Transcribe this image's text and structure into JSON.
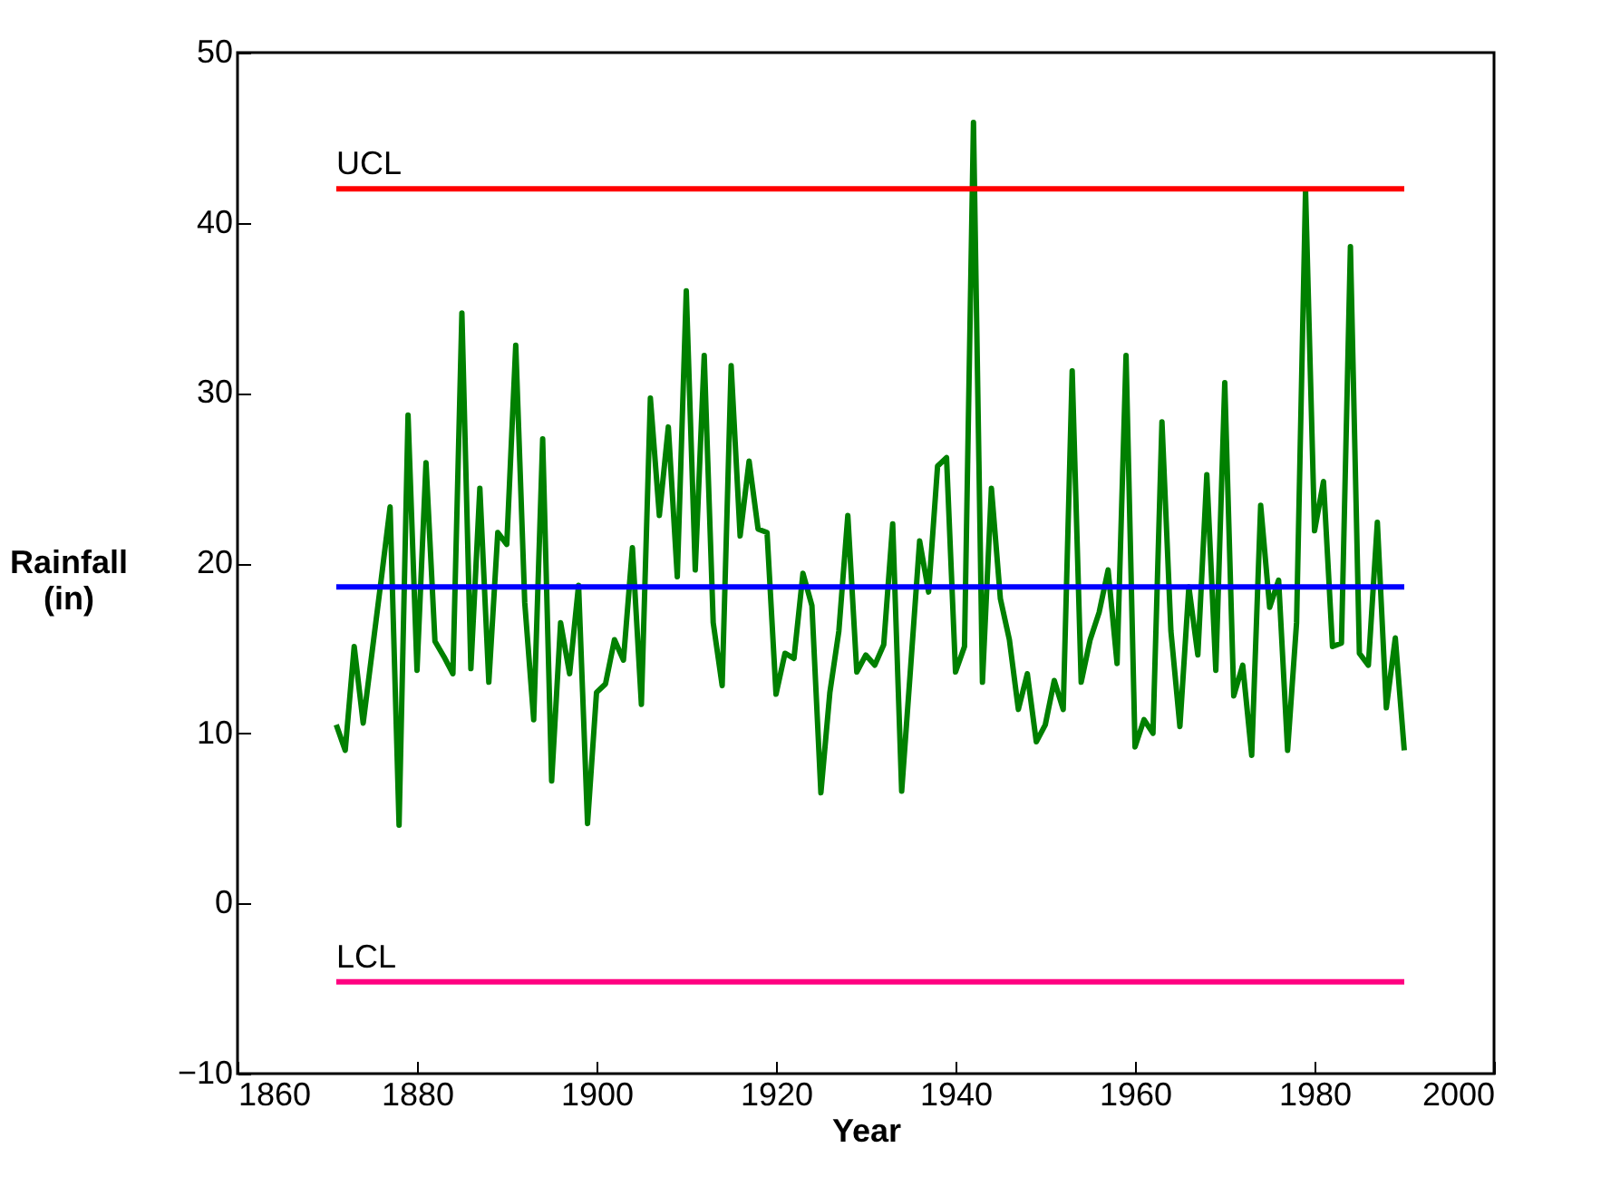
{
  "chart_data": {
    "type": "line",
    "xlabel": "Year",
    "ylabel": "Rainfall (in)",
    "x": [
      1871,
      1872,
      1873,
      1874,
      1875,
      1876,
      1877,
      1878,
      1879,
      1880,
      1881,
      1882,
      1883,
      1884,
      1885,
      1886,
      1887,
      1888,
      1889,
      1890,
      1891,
      1892,
      1893,
      1894,
      1895,
      1896,
      1897,
      1898,
      1899,
      1900,
      1901,
      1902,
      1903,
      1904,
      1905,
      1906,
      1907,
      1908,
      1909,
      1910,
      1911,
      1912,
      1913,
      1914,
      1915,
      1916,
      1917,
      1918,
      1919,
      1920,
      1921,
      1922,
      1923,
      1924,
      1925,
      1926,
      1927,
      1928,
      1929,
      1930,
      1931,
      1932,
      1933,
      1934,
      1935,
      1936,
      1937,
      1938,
      1939,
      1940,
      1941,
      1942,
      1943,
      1944,
      1945,
      1946,
      1947,
      1948,
      1949,
      1950,
      1951,
      1952,
      1953,
      1954,
      1955,
      1956,
      1957,
      1958,
      1959,
      1960,
      1961,
      1962,
      1963,
      1964,
      1965,
      1966,
      1967,
      1968,
      1969,
      1970,
      1971,
      1972,
      1973,
      1974,
      1975,
      1976,
      1977,
      1978,
      1979,
      1980,
      1981,
      1982,
      1983,
      1984,
      1985,
      1986,
      1987,
      1988,
      1989,
      1990
    ],
    "series": [
      {
        "color": "#008000",
        "values": [
          10.5,
          9.0,
          15.1,
          10.6,
          14.8,
          19.0,
          23.3,
          4.6,
          28.7,
          13.7,
          25.9,
          15.4,
          14.5,
          13.5,
          34.7,
          13.8,
          24.4,
          13.0,
          21.8,
          21.1,
          32.8,
          17.7,
          10.8,
          27.3,
          7.2,
          16.5,
          13.5,
          18.7,
          4.7,
          12.4,
          12.9,
          15.5,
          14.3,
          20.9,
          11.7,
          29.7,
          22.8,
          28.0,
          19.2,
          36.0,
          19.6,
          32.2,
          16.5,
          12.8,
          31.6,
          21.6,
          26.0,
          22.0,
          21.8,
          12.3,
          14.7,
          14.4,
          19.4,
          17.5,
          6.5,
          12.4,
          16.0,
          22.8,
          13.6,
          14.6,
          14.0,
          15.2,
          22.3,
          6.6,
          13.9,
          21.3,
          18.3,
          25.7,
          26.2,
          13.6,
          15.1,
          45.9,
          13.0,
          24.4,
          17.9,
          15.5,
          11.4,
          13.5,
          9.5,
          10.5,
          13.1,
          11.4,
          31.3,
          13.0,
          15.5,
          17.1,
          19.6,
          14.1,
          32.2,
          9.2,
          10.8,
          10.0,
          28.3,
          16.0,
          10.4,
          18.6,
          14.6,
          25.2,
          13.7,
          30.6,
          12.2,
          14.0,
          8.7,
          23.4,
          17.4,
          19.0,
          9.0,
          16.5,
          41.9,
          21.9,
          24.8,
          15.1,
          15.3,
          38.6,
          14.7,
          14.0,
          22.4,
          11.5,
          15.6,
          9.0
        ]
      }
    ],
    "ref_lines": [
      {
        "axis": "y",
        "value": 42,
        "label": "UCL",
        "color": "#ff0000"
      },
      {
        "axis": "y",
        "value": 18.6,
        "label": null,
        "color": "#0000ff"
      },
      {
        "axis": "y",
        "value": -4.6,
        "label": "LCL",
        "color": "#ff0080"
      }
    ],
    "xlim": [
      1860,
      2000
    ],
    "xticks": [
      1860,
      1880,
      1900,
      1920,
      1940,
      1960,
      1980,
      2000
    ],
    "ylim": [
      -10,
      50
    ],
    "yticks": [
      -10,
      0,
      10,
      20,
      30,
      40,
      50
    ],
    "grid": false,
    "marker": "none",
    "line_style": "solid"
  }
}
